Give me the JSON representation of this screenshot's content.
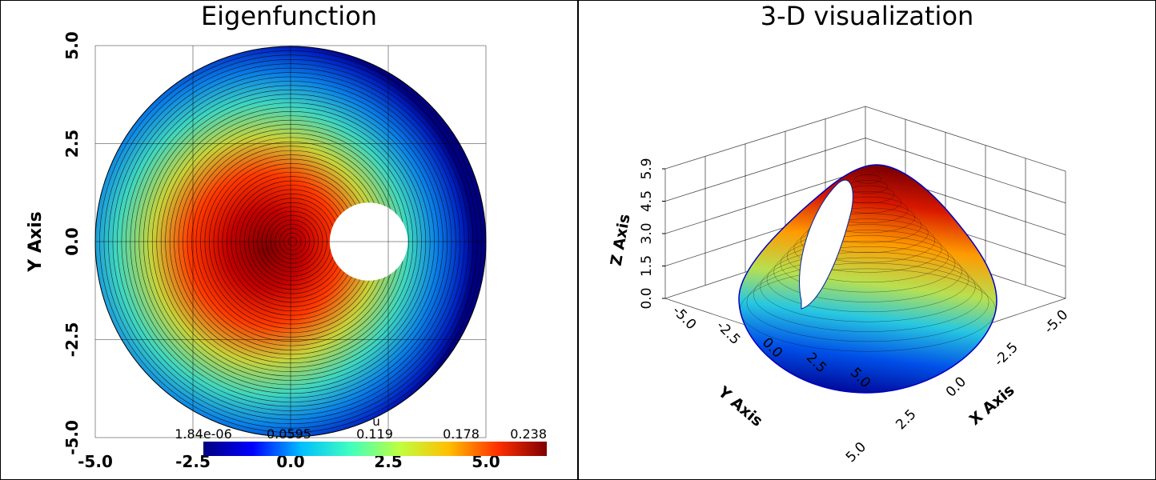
{
  "chart_data": [
    {
      "type": "heatmap",
      "title": "Eigenfunction",
      "xlabel": "",
      "ylabel": "Y Axis",
      "xlim": [
        -5.0,
        5.0
      ],
      "ylim": [
        -5.0,
        5.0
      ],
      "x_ticks": [
        "-5.0",
        "-2.5",
        "0.0",
        "2.5",
        "5.0"
      ],
      "y_ticks": [
        "-5.0",
        "-2.5",
        "0.0",
        "2.5",
        "5.0"
      ],
      "grid": true,
      "colormap": "jet",
      "domain": {
        "outer_radius": 5.0,
        "hole_center": [
          2.0,
          0.0
        ],
        "hole_radius": 1.0
      },
      "colorbar": {
        "title": "u",
        "min": 1.84e-06,
        "max": 0.238,
        "tick_labels": [
          "1.84e-06",
          "0.0595",
          "0.119",
          "0.178",
          "0.238"
        ],
        "colors": [
          "#00007f",
          "#0000ff",
          "#00bfff",
          "#40ffbf",
          "#bfff40",
          "#ffbf00",
          "#ff3000",
          "#7f0000"
        ]
      }
    },
    {
      "type": "surface",
      "title": "3-D visualization",
      "xlabel": "X Axis",
      "ylabel": "Y Axis",
      "zlabel": "Z Axis",
      "xlim": [
        -5.0,
        5.0
      ],
      "ylim": [
        -5.0,
        5.0
      ],
      "zlim": [
        0.0,
        5.9
      ],
      "x_ticks": [
        "5.0",
        "2.5",
        "0.0",
        "-2.5",
        "-5.0"
      ],
      "y_ticks": [
        "-5.0",
        "-2.5",
        "0.0",
        "2.5",
        "5.0"
      ],
      "z_ticks": [
        "0.0",
        "1.5",
        "3.0",
        "4.5",
        "5.9"
      ],
      "grid": true,
      "colormap": "jet"
    }
  ]
}
